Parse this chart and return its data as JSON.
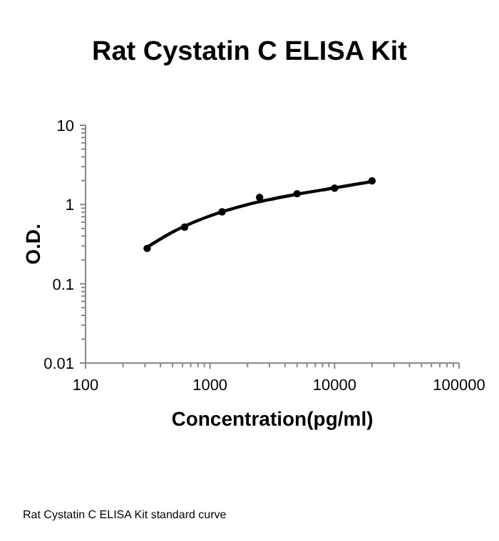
{
  "chart_data": {
    "type": "scatter",
    "title": "Rat Cystatin C ELISA Kit",
    "xlabel": "Concentration(pg/ml)",
    "ylabel": "O.D.",
    "log": "xy",
    "grid": false,
    "marker": "circle",
    "xlim": [
      100,
      100000
    ],
    "ylim": [
      0.01,
      10
    ],
    "xticks": [
      100,
      {
        "value": 200,
        "label": null
      },
      {
        "value": 300,
        "label": null
      },
      {
        "value": 400,
        "label": null
      },
      {
        "value": 500,
        "label": null
      },
      {
        "value": 600,
        "label": null
      },
      {
        "value": 700,
        "label": null
      },
      {
        "value": 800,
        "label": null
      },
      {
        "value": 900,
        "label": null
      },
      1000,
      {
        "value": 2000,
        "label": null
      },
      {
        "value": 3000,
        "label": null
      },
      {
        "value": 4000,
        "label": null
      },
      {
        "value": 5000,
        "label": null
      },
      {
        "value": 6000,
        "label": null
      },
      {
        "value": 7000,
        "label": null
      },
      {
        "value": 8000,
        "label": null
      },
      {
        "value": 9000,
        "label": null
      },
      10000,
      {
        "value": 20000,
        "label": null
      },
      {
        "value": 30000,
        "label": null
      },
      {
        "value": 40000,
        "label": null
      },
      {
        "value": 50000,
        "label": null
      },
      {
        "value": 60000,
        "label": null
      },
      {
        "value": 70000,
        "label": null
      },
      {
        "value": 80000,
        "label": null
      },
      {
        "value": 90000,
        "label": null
      },
      100000
    ],
    "yticks": [
      0.01,
      {
        "value": 0.02,
        "label": null
      },
      {
        "value": 0.03,
        "label": null
      },
      {
        "value": 0.04,
        "label": null
      },
      {
        "value": 0.05,
        "label": null
      },
      {
        "value": 0.06,
        "label": null
      },
      {
        "value": 0.07,
        "label": null
      },
      {
        "value": 0.08,
        "label": null
      },
      {
        "value": 0.09,
        "label": null
      },
      0.1,
      {
        "value": 0.2,
        "label": null
      },
      {
        "value": 0.3,
        "label": null
      },
      {
        "value": 0.4,
        "label": null
      },
      {
        "value": 0.5,
        "label": null
      },
      {
        "value": 0.6,
        "label": null
      },
      {
        "value": 0.7,
        "label": null
      },
      {
        "value": 0.8,
        "label": null
      },
      {
        "value": 0.9,
        "label": null
      },
      1,
      {
        "value": 2,
        "label": null
      },
      {
        "value": 3,
        "label": null
      },
      {
        "value": 4,
        "label": null
      },
      {
        "value": 5,
        "label": null
      },
      {
        "value": 6,
        "label": null
      },
      {
        "value": 7,
        "label": null
      },
      {
        "value": 8,
        "label": null
      },
      {
        "value": 9,
        "label": null
      },
      10
    ],
    "series": [
      {
        "color": "#000000",
        "x": [
          312.5,
          625,
          1250,
          2500,
          5000,
          10000,
          20000
        ],
        "values": [
          0.28,
          0.52,
          0.81,
          1.23,
          1.37,
          1.61,
          1.99
        ]
      },
      {
        "type": "line",
        "color": "#000000",
        "marker": "none",
        "x": [
          312.5,
          500,
          1000,
          2000,
          5000,
          10000,
          20000
        ],
        "values": [
          0.29,
          0.45,
          0.72,
          1.0,
          1.35,
          1.62,
          1.95
        ]
      }
    ],
    "annotations": [
      "Rat Cystatin C ELISA Kit standard curve"
    ]
  }
}
